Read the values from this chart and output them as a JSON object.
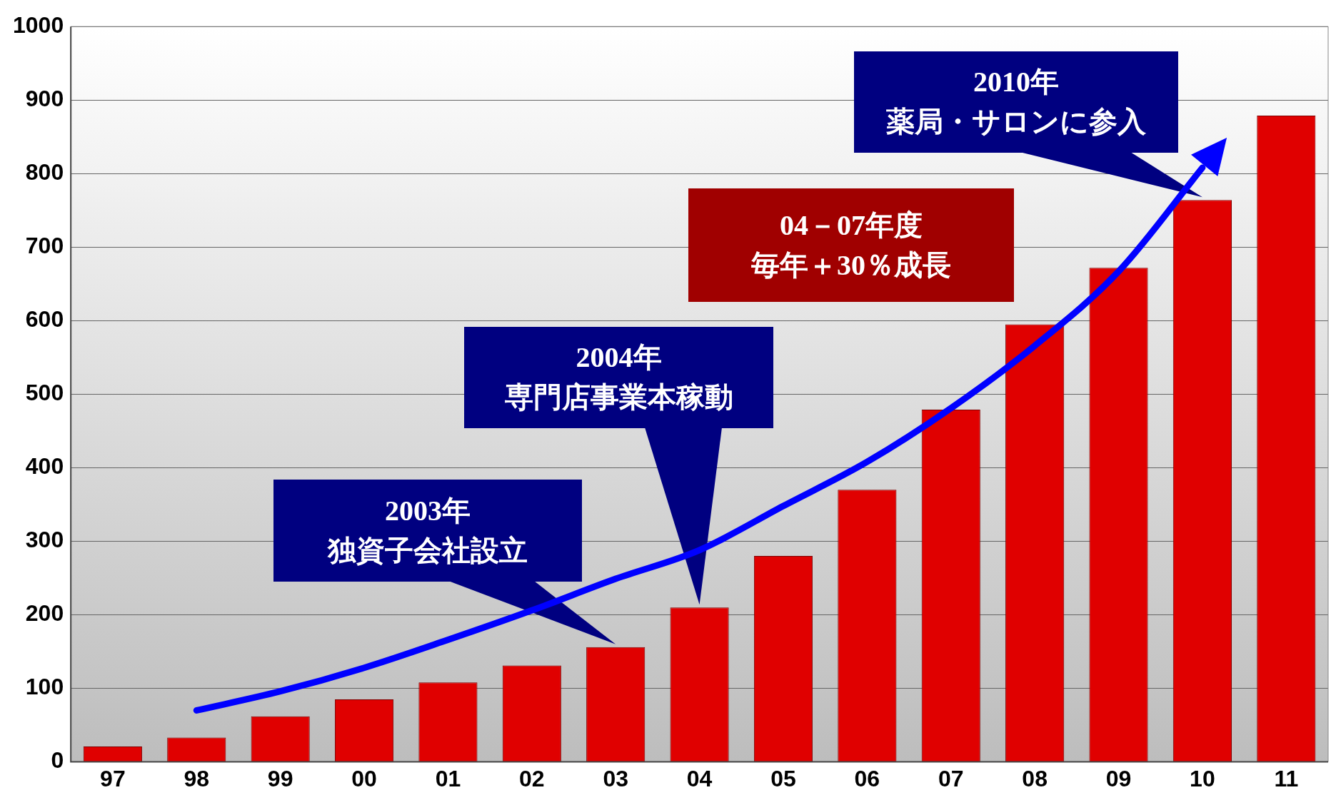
{
  "chart_data": {
    "type": "bar",
    "categories": [
      "97",
      "98",
      "99",
      "00",
      "01",
      "02",
      "03",
      "04",
      "05",
      "06",
      "07",
      "08",
      "09",
      "10",
      "11"
    ],
    "series": [
      {
        "type": "bar",
        "color": "#e00000",
        "values": [
          21,
          33,
          62,
          85,
          108,
          131,
          156,
          210,
          280,
          370,
          479,
          595,
          672,
          764,
          879
        ]
      },
      {
        "type": "line",
        "color": "#0000ff",
        "values": [
          null,
          70,
          96,
          128,
          166,
          206,
          249,
          288,
          348,
          408,
          481,
          566,
          667,
          808,
          null
        ]
      }
    ],
    "ylim": [
      0,
      1000
    ],
    "yticks": [
      0,
      100,
      200,
      300,
      400,
      500,
      600,
      700,
      800,
      900,
      1000
    ],
    "grid": "y",
    "annotations": [
      "2003年",
      {
        "text": "独資子会社設立",
        "x": "03",
        "y": 156
      },
      "2004年",
      {
        "text": "専門店事業本稼動",
        "x": "04",
        "y": 210
      },
      "04－07年度",
      "毎年＋30％成長",
      "2010年",
      {
        "text": "薬局・サロンに参入",
        "x": "10",
        "y": 764
      }
    ]
  }
}
